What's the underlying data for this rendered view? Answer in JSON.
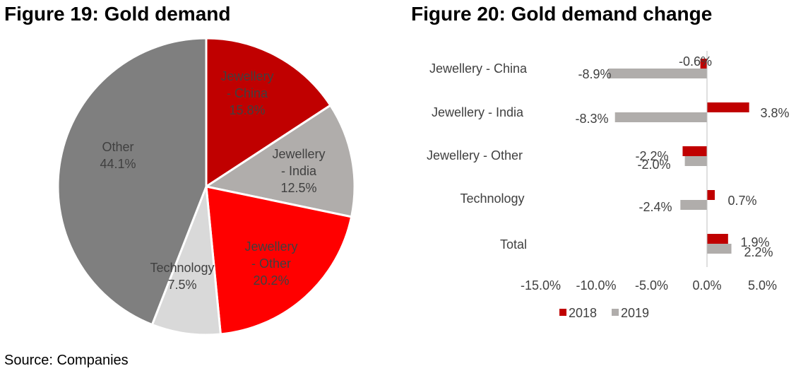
{
  "figure19": {
    "title": "Figure 19: Gold demand"
  },
  "figure20": {
    "title": "Figure 20: Gold demand change"
  },
  "source": "Source: Companies",
  "chart_data": [
    {
      "type": "pie",
      "title": "Figure 19: Gold demand",
      "slices": [
        {
          "label_lines": [
            "Jewellery",
            "- China"
          ],
          "value": 15.8,
          "value_label": "15.8%",
          "color": "#c00000"
        },
        {
          "label_lines": [
            "Jewellery",
            "- India"
          ],
          "value": 12.5,
          "value_label": "12.5%",
          "color": "#b0adab"
        },
        {
          "label_lines": [
            "Jewellery",
            "- Other"
          ],
          "value": 20.2,
          "value_label": "20.2%",
          "color": "#ff0000"
        },
        {
          "label_lines": [
            "Technology"
          ],
          "value": 7.5,
          "value_label": "7.5%",
          "color": "#d9d9d9"
        },
        {
          "label_lines": [
            "Other"
          ],
          "value": 44.1,
          "value_label": "44.1%",
          "color": "#7f7f7f"
        }
      ]
    },
    {
      "type": "bar",
      "orientation": "horizontal",
      "title": "Figure 20: Gold demand change",
      "categories": [
        "Jewellery - China",
        "Jewellery - India",
        "Jewellery - Other",
        "Technology",
        "Total"
      ],
      "series": [
        {
          "name": "2018",
          "color": "#c00000",
          "values": [
            -0.6,
            3.8,
            -2.2,
            0.7,
            1.9
          ],
          "labels": [
            "-0.6%",
            "3.8%",
            "-2.2%",
            "0.7%",
            "1.9%"
          ]
        },
        {
          "name": "2019",
          "color": "#b0adab",
          "values": [
            -8.9,
            -8.3,
            -2.0,
            -2.4,
            2.2
          ],
          "labels": [
            "-8.9%",
            "-8.3%",
            "-2.0%",
            "-2.4%",
            "2.2%"
          ]
        }
      ],
      "xlim": [
        -15,
        5
      ],
      "xticks": [
        "-15.0%",
        "-10.0%",
        "-5.0%",
        "0.0%",
        "5.0%"
      ],
      "grid": false,
      "legend": "bottom"
    }
  ]
}
